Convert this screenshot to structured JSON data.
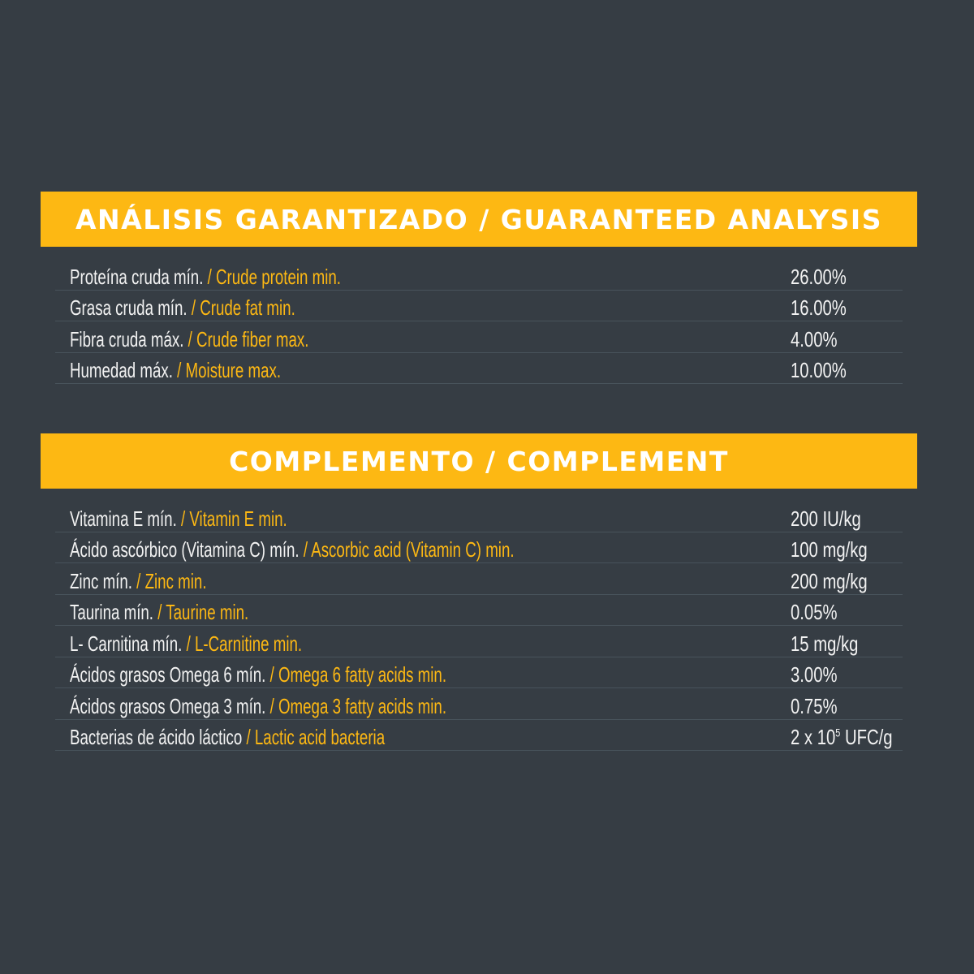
{
  "colors": {
    "background": "#363d44",
    "accent": "#fdb813",
    "text": "#f2f2f2"
  },
  "analysis": {
    "title": "ANÁLISIS GARANTIZADO / GUARANTEED ANALYSIS",
    "rows": [
      {
        "es": "Proteína cruda mín.",
        "en": " / Crude protein min.",
        "value": "26.00%"
      },
      {
        "es": "Grasa cruda mín.",
        "en": " / Crude fat min.",
        "value": "16.00%"
      },
      {
        "es": "Fibra cruda máx.",
        "en": " / Crude fiber max.",
        "value": "4.00%"
      },
      {
        "es": "Humedad máx.",
        "en": " / Moisture max.",
        "value": "10.00%"
      }
    ]
  },
  "complement": {
    "title": "COMPLEMENTO / COMPLEMENT",
    "rows": [
      {
        "es": "Vitamina E mín.",
        "en": " / Vitamin E min.",
        "value": "200 IU/kg"
      },
      {
        "es": "Ácido ascórbico (Vitamina C) mín.",
        "en": " / Ascorbic acid (Vitamin C) min.",
        "value": "100 mg/kg"
      },
      {
        "es": "Zinc mín.",
        "en": " / Zinc min.",
        "value": "200 mg/kg"
      },
      {
        "es": "Taurina mín.",
        "en": " / Taurine min.",
        "value": "0.05%"
      },
      {
        "es": "L- Carnitina mín.",
        "en": " / L-Carnitine min.",
        "value": "15 mg/kg"
      },
      {
        "es": "Ácidos grasos Omega 6 mín.",
        "en": " / Omega 6 fatty acids min.",
        "value": "3.00%"
      },
      {
        "es": "Ácidos grasos Omega 3 mín.",
        "en": " / Omega 3 fatty acids min.",
        "value": "0.75%"
      },
      {
        "es": "Bacterias de ácido láctico",
        "en": " / Lactic acid bacteria",
        "value_base": "2 x 10",
        "value_exp": "5",
        "value_unit": " UFC/g"
      }
    ]
  }
}
